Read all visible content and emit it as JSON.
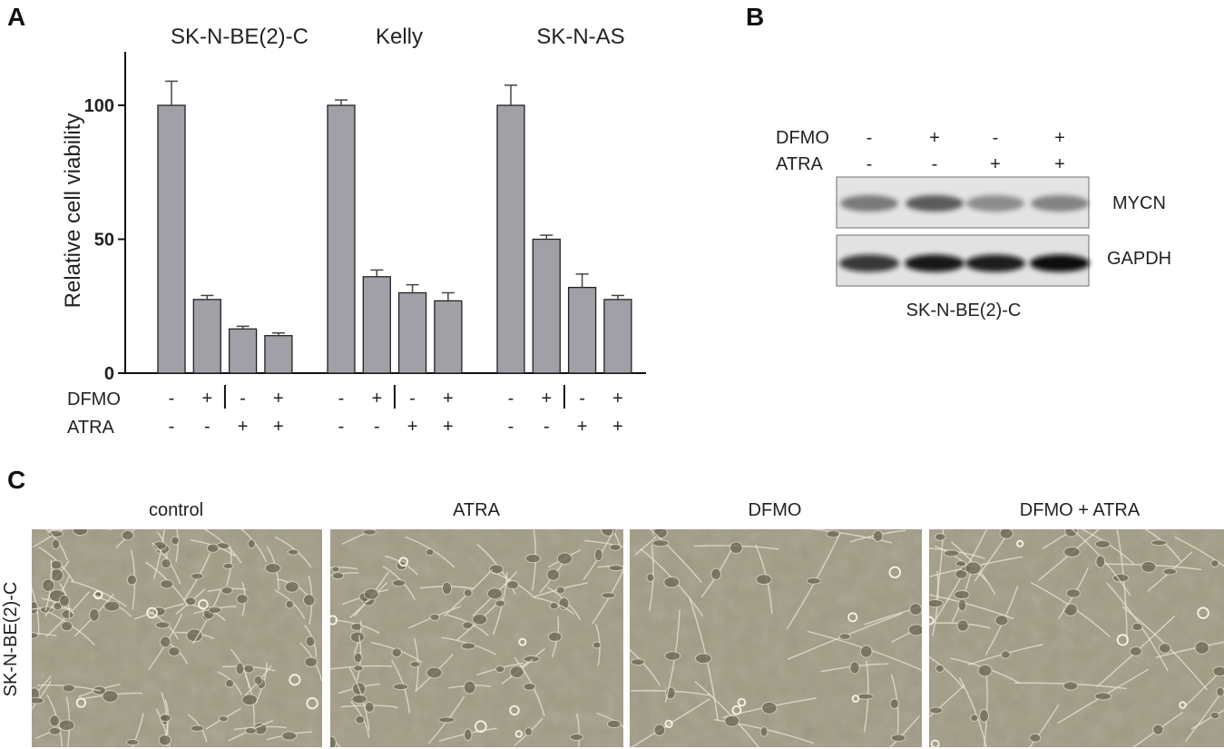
{
  "panels": {
    "a": "A",
    "b": "B",
    "c": "C"
  },
  "chart_data": {
    "type": "bar",
    "ylabel": "Relative cell viability",
    "ylim": [
      0,
      120
    ],
    "yticks": [
      "0",
      "50",
      "100"
    ],
    "groups": [
      {
        "name": "SK-N-BE(2)-C",
        "values": [
          100,
          27.5,
          16.5,
          14
        ],
        "errors": [
          9,
          1.5,
          1,
          1
        ]
      },
      {
        "name": "Kelly",
        "values": [
          100,
          36,
          30,
          27
        ],
        "errors": [
          2,
          2.5,
          3,
          3
        ]
      },
      {
        "name": "SK-N-AS",
        "values": [
          100,
          50,
          32,
          27.5
        ],
        "errors": [
          7.5,
          1.5,
          5,
          1.5
        ]
      }
    ],
    "bar_color": "#a0a0a6",
    "row_labels": [
      "DFMO",
      "ATRA"
    ],
    "conditions": [
      {
        "dfmo": "-",
        "atra": "-"
      },
      {
        "dfmo": "+",
        "atra": "-"
      },
      {
        "dfmo": "-",
        "atra": "+"
      },
      {
        "dfmo": "+",
        "atra": "+"
      }
    ]
  },
  "blot": {
    "row_labels": [
      "DFMO",
      "ATRA"
    ],
    "conditions": [
      {
        "dfmo": "-",
        "atra": "-"
      },
      {
        "dfmo": "+",
        "atra": "-"
      },
      {
        "dfmo": "-",
        "atra": "+"
      },
      {
        "dfmo": "+",
        "atra": "+"
      }
    ],
    "proteins": [
      "MYCN",
      "GAPDH"
    ],
    "cell_line": "SK-N-BE(2)-C"
  },
  "micrographs": {
    "cell_line": "SK-N-BE(2)-C",
    "titles": [
      "control",
      "ATRA",
      "DFMO",
      "DFMO + ATRA"
    ],
    "background": "#a29c86"
  }
}
